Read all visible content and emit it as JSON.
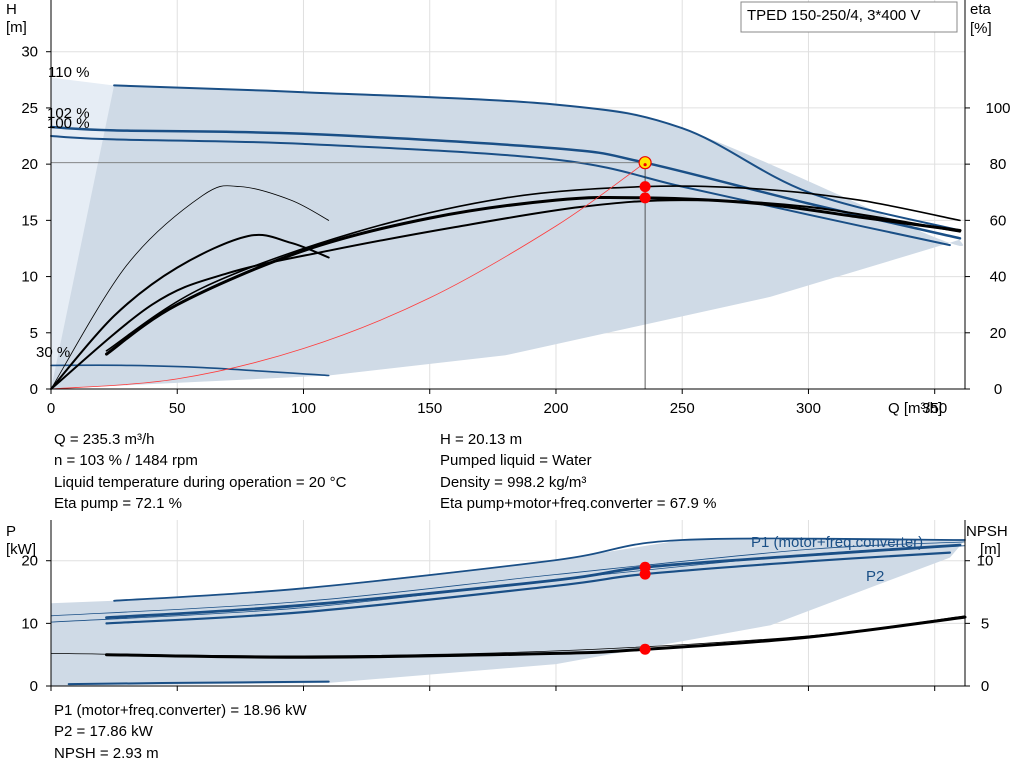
{
  "pump_label": "TPED 150-250/4, 3*400 V",
  "colors": {
    "band": "#cfdae6",
    "band_light": "#e6edf5",
    "curve_blue": "#1a4f86",
    "curve_black": "#000000",
    "system_curve": "#ff3b3b",
    "duty_point": "#ff0000",
    "duty_marker": "#ffe600"
  },
  "chart_data": [
    {
      "type": "line",
      "title": "",
      "xlabel": "Q [m³/h]",
      "ylabel": "H\n[m]",
      "y2label": "eta\n[%]",
      "xlim": [
        0,
        362
      ],
      "ylim": [
        0,
        34.6
      ],
      "y2lim": [
        0,
        138.4
      ],
      "xticks": [
        0,
        50,
        100,
        150,
        200,
        250,
        300,
        350
      ],
      "yticks": [
        0,
        5,
        10,
        15,
        20,
        25,
        30
      ],
      "y2ticks": [
        0,
        20,
        40,
        60,
        80,
        100
      ],
      "grid": true,
      "speed_labels": [
        "110 %",
        "102 %",
        "100 %",
        "30 %"
      ],
      "band": {
        "upper": [
          [
            0,
            27.7
          ],
          [
            25,
            27.0
          ],
          [
            100,
            26.4
          ],
          [
            200,
            25.3
          ],
          [
            250,
            23.2
          ],
          [
            350,
            13.5
          ],
          [
            360,
            13.3
          ]
        ],
        "lower": [
          [
            0,
            0
          ],
          [
            110,
            1.2
          ],
          [
            180,
            3.0
          ],
          [
            285,
            8.2
          ],
          [
            356,
            13.0
          ]
        ]
      },
      "series": [
        {
          "color": "blue",
          "width": 2.5,
          "points": [
            [
              0,
              23.3
            ],
            [
              25,
              23.0
            ],
            [
              100,
              22.7
            ],
            [
              200,
              21.4
            ],
            [
              235.3,
              20.13
            ],
            [
              300,
              16.5
            ],
            [
              360,
              13.4
            ]
          ]
        },
        {
          "color": "blue",
          "width": 2.0,
          "points": [
            [
              0,
              22.5
            ],
            [
              25,
              22.2
            ],
            [
              100,
              21.8
            ],
            [
              200,
              20.4
            ],
            [
              250,
              18.0
            ],
            [
              300,
              15.5
            ],
            [
              356,
              12.8
            ]
          ]
        },
        {
          "color": "blue",
          "width": 2.0,
          "points": [
            [
              25,
              27.0
            ],
            [
              100,
              26.4
            ],
            [
              200,
              25.3
            ],
            [
              250,
              23.2
            ],
            [
              300,
              17.5
            ],
            [
              360,
              14.1
            ]
          ]
        },
        {
          "color": "blue",
          "width": 1.6,
          "points": [
            [
              0,
              2.1
            ],
            [
              30,
              2.1
            ],
            [
              60,
              1.9
            ],
            [
              110,
              1.2
            ]
          ]
        },
        {
          "color": "black",
          "width": 3.0,
          "points": [
            [
              22,
              3.1
            ],
            [
              50,
              7.5
            ],
            [
              100,
              12.3
            ],
            [
              150,
              15.2
            ],
            [
              200,
              16.8
            ],
            [
              235.3,
              17.0
            ],
            [
              280,
              16.5
            ],
            [
              320,
              15.3
            ],
            [
              360,
              14.1
            ]
          ]
        },
        {
          "color": "black",
          "width": 2.0,
          "points": [
            [
              0,
              0
            ],
            [
              40,
              7.5
            ],
            [
              70,
              10.3
            ],
            [
              110,
              12.3
            ],
            [
              160,
              14.4
            ],
            [
              210,
              16.2
            ],
            [
              250,
              16.8
            ],
            [
              300,
              16.2
            ],
            [
              360,
              14.0
            ]
          ]
        },
        {
          "color": "black",
          "width": 1.6,
          "points": [
            [
              22,
              3.4
            ],
            [
              60,
              9.0
            ],
            [
              120,
              13.9
            ],
            [
              180,
              17.0
            ],
            [
              235.3,
              18.0
            ],
            [
              280,
              17.8
            ],
            [
              320,
              16.8
            ],
            [
              360,
              15.0
            ]
          ]
        },
        {
          "color": "black",
          "width": 2.0,
          "points": [
            [
              0,
              0
            ],
            [
              25,
              6.5
            ],
            [
              50,
              10.8
            ],
            [
              78,
              13.6
            ],
            [
              95,
              13.0
            ],
            [
              110,
              11.7
            ]
          ]
        },
        {
          "color": "black",
          "width": 0.8,
          "points": [
            [
              0,
              0
            ],
            [
              30,
              11.0
            ],
            [
              60,
              17.2
            ],
            [
              75,
              18.0
            ],
            [
              95,
              16.8
            ],
            [
              110,
              15.0
            ]
          ]
        },
        {
          "color": "red",
          "width": 0.8,
          "points": [
            [
              0,
              0
            ],
            [
              50,
              0.9
            ],
            [
              100,
              3.6
            ],
            [
              150,
              8.1
            ],
            [
              200,
              14.5
            ],
            [
              235.3,
              20.13
            ]
          ]
        }
      ],
      "duty_point": {
        "Q": 235.3,
        "H": 20.13
      },
      "markers": [
        {
          "Q": 235.3,
          "H": 18.0
        },
        {
          "Q": 235.3,
          "H": 17.0
        }
      ]
    },
    {
      "type": "line",
      "title": "",
      "xlabel": "",
      "ylabel": "P\n[kW]",
      "y2label": "NPSH\n[m]",
      "xlim": [
        0,
        362
      ],
      "ylim": [
        0,
        26.5
      ],
      "y2lim": [
        0,
        13.25
      ],
      "yticks": [
        0,
        10,
        20
      ],
      "y2ticks": [
        0,
        5,
        10
      ],
      "grid": true,
      "band": {
        "upper": [
          [
            0,
            13.2
          ],
          [
            25,
            13.6
          ],
          [
            100,
            15.6
          ],
          [
            200,
            20.1
          ],
          [
            250,
            23.3
          ],
          [
            362,
            23.3
          ]
        ],
        "lower": [
          [
            0,
            0
          ],
          [
            110,
            0.5
          ],
          [
            200,
            3.5
          ],
          [
            285,
            9.7
          ],
          [
            356,
            20.5
          ]
        ]
      },
      "series": [
        {
          "name": "P1 (motor+freq.converter)",
          "color": "blue",
          "width": 2.8,
          "points": [
            [
              22,
              10.9
            ],
            [
              100,
              12.9
            ],
            [
              200,
              16.9
            ],
            [
              235.3,
              18.96
            ],
            [
              300,
              20.9
            ],
            [
              360,
              22.5
            ]
          ]
        },
        {
          "name": "P2",
          "color": "blue",
          "width": 2.2,
          "points": [
            [
              22,
              10.0
            ],
            [
              100,
              11.8
            ],
            [
              200,
              16.0
            ],
            [
              235.3,
              17.86
            ],
            [
              300,
              19.9
            ],
            [
              356,
              21.3
            ]
          ]
        },
        {
          "color": "blue",
          "width": 1.8,
          "points": [
            [
              25,
              13.6
            ],
            [
              100,
              15.6
            ],
            [
              200,
              20.1
            ],
            [
              250,
              23.3
            ],
            [
              362,
              23.3
            ]
          ]
        },
        {
          "color": "blue",
          "width": 0.8,
          "points": [
            [
              0,
              11.2
            ],
            [
              100,
              13.5
            ],
            [
              200,
              17.8
            ],
            [
              300,
              21.8
            ],
            [
              362,
              23.0
            ]
          ]
        },
        {
          "color": "blue",
          "width": 0.8,
          "points": [
            [
              0,
              10.2
            ],
            [
              100,
              12.5
            ],
            [
              200,
              17.0
            ],
            [
              300,
              21.0
            ],
            [
              362,
              22.4
            ]
          ]
        },
        {
          "color": "blue",
          "width": 2.0,
          "points": [
            [
              7,
              0.3
            ],
            [
              50,
              0.5
            ],
            [
              110,
              0.7
            ]
          ]
        },
        {
          "color": "black",
          "width": 3.0,
          "axis": "right",
          "points": [
            [
              22,
              2.5
            ],
            [
              100,
              2.3
            ],
            [
              200,
              2.6
            ],
            [
              235.3,
              2.93
            ],
            [
              300,
              3.9
            ],
            [
              362,
              5.5
            ]
          ]
        },
        {
          "color": "black",
          "width": 0.8,
          "axis": "right",
          "points": [
            [
              0,
              2.6
            ],
            [
              100,
              2.4
            ],
            [
              200,
              2.8
            ],
            [
              300,
              4.0
            ],
            [
              362,
              5.6
            ]
          ]
        }
      ],
      "markers": [
        {
          "Q": 235.3,
          "P": 18.96
        },
        {
          "Q": 235.3,
          "P": 17.86
        }
      ],
      "npsh_marker": {
        "Q": 235.3,
        "NPSH": 2.93
      },
      "legend_labels": [
        "P1 (motor+freq.converter)",
        "P2"
      ]
    }
  ],
  "info_top_left": [
    "Q = 235.3 m³/h",
    "n = 103 % / 1484 rpm",
    "Liquid temperature during operation = 20 °C",
    "Eta pump = 72.1 %"
  ],
  "info_top_right": [
    "H = 20.13 m",
    "Pumped liquid = Water",
    "Density = 998.2 kg/m³",
    "Eta pump+motor+freq.converter = 67.9 %"
  ],
  "info_bottom": [
    "P1 (motor+freq.converter) = 18.96 kW",
    "P2 = 17.86 kW",
    "NPSH = 2.93 m"
  ]
}
